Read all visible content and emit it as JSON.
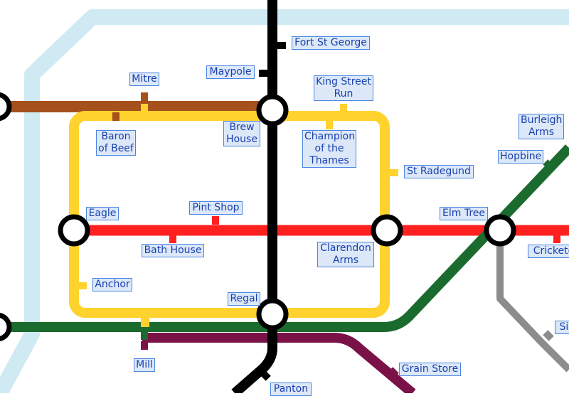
{
  "lines": {
    "river": {
      "color": "#cfeaf3"
    },
    "brown": {
      "color": "#a6501c"
    },
    "yellow": {
      "color": "#ffd22e"
    },
    "black": {
      "color": "#000000"
    },
    "red": {
      "color": "#ff2020"
    },
    "green": {
      "color": "#1c6b2e"
    },
    "grey": {
      "color": "#8c8c8c"
    },
    "purple": {
      "color": "#7a1248"
    }
  },
  "stations": {
    "fort_st_george": "Fort St George",
    "maypole": "Maypole",
    "mitre": "Mitre",
    "king_street_run": "King Street\nRun",
    "baron_of_beef": "Baron\nof Beef",
    "brew_house": "Brew\nHouse",
    "champion_of_the_thames": "Champion\nof the\nThames",
    "burleigh_arms": "Burleigh\nArms",
    "hopbine": "Hopbine",
    "st_radegund": "St Radegund",
    "eagle": "Eagle",
    "pint_shop": "Pint Shop",
    "elm_tree": "Elm Tree",
    "bath_house": "Bath House",
    "clarendon_arms": "Clarendon\nArms",
    "cricketers": "Cricketers",
    "anchor": "Anchor",
    "regal": "Regal",
    "six": "Six",
    "mill": "Mill",
    "grain_store": "Grain Store",
    "panton": "Panton"
  }
}
